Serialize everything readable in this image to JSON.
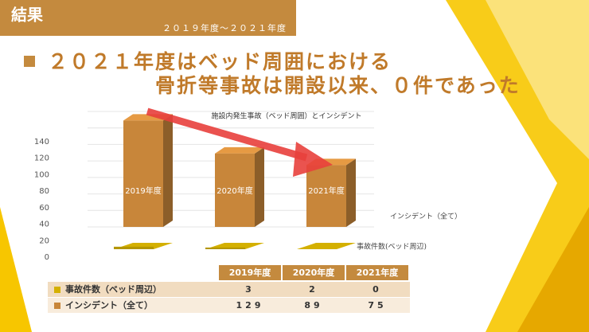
{
  "header": {
    "title": "結果",
    "period": "２０１９年度～２０２１年度"
  },
  "headline": [
    "２０２１年度はベッド周囲における",
    "骨折等事故は開設以来、０件であった"
  ],
  "chart_data": {
    "type": "bar3d",
    "title": "施設内発生事故（ベッド周囲）とインシデント",
    "categories": [
      "2019年度",
      "2020年度",
      "2021年度"
    ],
    "series": [
      {
        "name": "事故件数(ベッド周辺)",
        "color": "#d4b000",
        "values": [
          3,
          2,
          0
        ]
      },
      {
        "name": "インシデント（全て）",
        "color": "#c8863a",
        "values": [
          129,
          89,
          75
        ]
      }
    ],
    "ylim": [
      0,
      140
    ],
    "yticks": [
      0,
      20,
      40,
      60,
      80,
      100,
      120,
      140
    ],
    "grid": true,
    "data_table": {
      "row_labels": [
        "事故件数（ベッド周辺）",
        "インシデント（全て）"
      ]
    }
  }
}
